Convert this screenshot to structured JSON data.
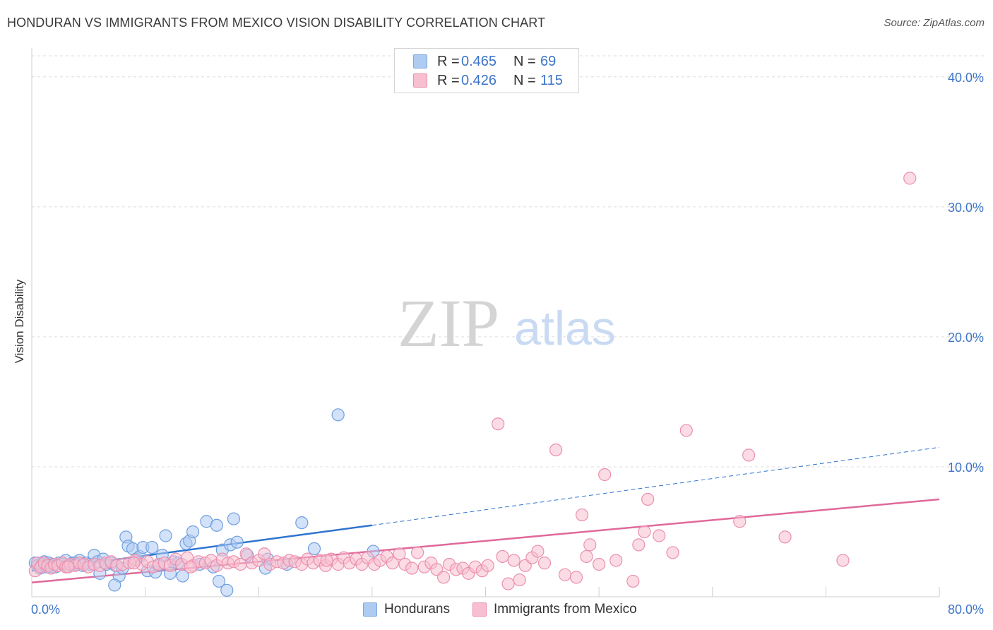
{
  "header": {
    "title": "HONDURAN VS IMMIGRANTS FROM MEXICO VISION DISABILITY CORRELATION CHART",
    "source": "Source: ZipAtlas.com"
  },
  "watermark": {
    "zip": "ZIP",
    "atlas": "atlas"
  },
  "legend": {
    "r_label": "R =",
    "n_label": "N =",
    "rows": [
      {
        "name": "Hondurans",
        "r": "0.465",
        "n": "69",
        "color": "#aecbf2",
        "edge": "#7fa8e0"
      },
      {
        "name": "Immigrants from Mexico",
        "r": "0.426",
        "n": "115",
        "color": "#f7bfd0",
        "edge": "#eb8fae"
      }
    ]
  },
  "chart_data": {
    "type": "scatter",
    "title": "HONDURAN VS IMMIGRANTS FROM MEXICO VISION DISABILITY CORRELATION CHART",
    "xlabel": "",
    "ylabel": "Vision Disability",
    "xlim": [
      0,
      80
    ],
    "ylim": [
      0,
      42
    ],
    "x_tick_labels": [
      "0.0%",
      "80.0%"
    ],
    "y_ticks": [
      10,
      20,
      30,
      40
    ],
    "y_tick_labels": [
      "10.0%",
      "20.0%",
      "30.0%",
      "40.0%"
    ],
    "grid": true,
    "series": [
      {
        "name": "Hondurans",
        "color": "#6f9fe0",
        "fill": "#aecbf2",
        "trend": {
          "x0": 0,
          "y0": 2.0,
          "x1": 30,
          "y1": 5.5,
          "dashed_to_x": 80,
          "dashed_to_y": 11.5,
          "color": "#2f74d0"
        },
        "points": [
          [
            0.3,
            2.6
          ],
          [
            0.5,
            2.4
          ],
          [
            0.7,
            2.2
          ],
          [
            0.9,
            2.5
          ],
          [
            1.1,
            2.7
          ],
          [
            1.3,
            2.3
          ],
          [
            1.5,
            2.6
          ],
          [
            1.7,
            2.4
          ],
          [
            1.9,
            2.5
          ],
          [
            2.1,
            2.3
          ],
          [
            2.4,
            2.6
          ],
          [
            2.7,
            2.5
          ],
          [
            3.0,
            2.8
          ],
          [
            3.3,
            2.4
          ],
          [
            3.6,
            2.6
          ],
          [
            3.9,
            2.5
          ],
          [
            4.2,
            2.8
          ],
          [
            4.5,
            2.4
          ],
          [
            4.8,
            2.6
          ],
          [
            5.1,
            2.5
          ],
          [
            5.5,
            3.2
          ],
          [
            5.8,
            2.7
          ],
          [
            6.0,
            1.8
          ],
          [
            6.3,
            2.9
          ],
          [
            6.6,
            2.5
          ],
          [
            7.0,
            2.6
          ],
          [
            7.4,
            2.4
          ],
          [
            7.7,
            1.6
          ],
          [
            8.0,
            2.2
          ],
          [
            8.3,
            4.6
          ],
          [
            8.5,
            3.9
          ],
          [
            8.9,
            3.7
          ],
          [
            9.2,
            2.9
          ],
          [
            9.5,
            3.1
          ],
          [
            9.8,
            3.8
          ],
          [
            10.2,
            2.0
          ],
          [
            10.6,
            3.8
          ],
          [
            10.9,
            1.9
          ],
          [
            11.2,
            2.4
          ],
          [
            11.5,
            3.2
          ],
          [
            11.8,
            4.7
          ],
          [
            12.2,
            1.8
          ],
          [
            12.5,
            2.7
          ],
          [
            12.9,
            2.6
          ],
          [
            13.3,
            1.6
          ],
          [
            13.6,
            4.1
          ],
          [
            13.9,
            4.3
          ],
          [
            14.2,
            5.0
          ],
          [
            14.8,
            2.5
          ],
          [
            15.4,
            5.8
          ],
          [
            16.0,
            2.3
          ],
          [
            16.3,
            5.5
          ],
          [
            16.5,
            1.2
          ],
          [
            16.8,
            3.6
          ],
          [
            17.2,
            0.5
          ],
          [
            17.5,
            4.0
          ],
          [
            17.8,
            6.0
          ],
          [
            18.1,
            4.2
          ],
          [
            19.0,
            3.2
          ],
          [
            20.8,
            2.9
          ],
          [
            20.6,
            2.2
          ],
          [
            22.5,
            2.5
          ],
          [
            23.8,
            5.7
          ],
          [
            24.9,
            3.7
          ],
          [
            27.0,
            14.0
          ],
          [
            30.1,
            3.5
          ],
          [
            1.8,
            2.3
          ],
          [
            3.8,
            2.6
          ],
          [
            7.3,
            0.9
          ]
        ]
      },
      {
        "name": "Immigrants from Mexico",
        "color": "#eb8fae",
        "fill": "#f7bfd0",
        "trend": {
          "x0": 0,
          "y0": 1.1,
          "x1": 80,
          "y1": 7.5,
          "color": "#e0699a"
        },
        "points": [
          [
            0.3,
            2.0
          ],
          [
            0.5,
            2.6
          ],
          [
            0.8,
            2.3
          ],
          [
            1.1,
            2.6
          ],
          [
            1.4,
            2.4
          ],
          [
            1.7,
            2.2
          ],
          [
            2.0,
            2.5
          ],
          [
            2.3,
            2.4
          ],
          [
            2.7,
            2.6
          ],
          [
            3.0,
            2.3
          ],
          [
            3.4,
            2.5
          ],
          [
            3.8,
            2.4
          ],
          [
            4.2,
            2.6
          ],
          [
            4.6,
            2.5
          ],
          [
            5.0,
            2.3
          ],
          [
            5.5,
            2.5
          ],
          [
            6.0,
            2.4
          ],
          [
            6.5,
            2.6
          ],
          [
            7.0,
            2.7
          ],
          [
            7.5,
            2.4
          ],
          [
            8.0,
            2.5
          ],
          [
            8.6,
            2.6
          ],
          [
            9.1,
            2.8
          ],
          [
            9.7,
            2.5
          ],
          [
            10.2,
            2.7
          ],
          [
            10.7,
            2.3
          ],
          [
            11.2,
            2.5
          ],
          [
            11.7,
            2.6
          ],
          [
            12.2,
            2.4
          ],
          [
            12.7,
            2.9
          ],
          [
            13.2,
            2.5
          ],
          [
            13.7,
            3.0
          ],
          [
            14.2,
            2.4
          ],
          [
            14.7,
            2.7
          ],
          [
            15.3,
            2.6
          ],
          [
            15.8,
            2.8
          ],
          [
            16.3,
            2.4
          ],
          [
            16.8,
            2.9
          ],
          [
            17.3,
            2.6
          ],
          [
            17.8,
            2.7
          ],
          [
            18.4,
            2.5
          ],
          [
            18.9,
            3.3
          ],
          [
            19.4,
            2.6
          ],
          [
            20.0,
            2.8
          ],
          [
            20.5,
            3.3
          ],
          [
            21.0,
            2.5
          ],
          [
            21.6,
            2.7
          ],
          [
            22.2,
            2.6
          ],
          [
            22.7,
            2.8
          ],
          [
            23.2,
            2.7
          ],
          [
            23.8,
            2.5
          ],
          [
            24.3,
            2.9
          ],
          [
            24.8,
            2.6
          ],
          [
            25.4,
            2.8
          ],
          [
            25.9,
            2.4
          ],
          [
            26.4,
            2.9
          ],
          [
            27.0,
            2.5
          ],
          [
            27.5,
            3.0
          ],
          [
            28.0,
            2.6
          ],
          [
            28.6,
            2.9
          ],
          [
            29.1,
            2.5
          ],
          [
            29.6,
            3.0
          ],
          [
            30.2,
            2.5
          ],
          [
            30.7,
            2.8
          ],
          [
            31.3,
            3.1
          ],
          [
            31.8,
            2.6
          ],
          [
            32.4,
            3.3
          ],
          [
            32.9,
            2.5
          ],
          [
            33.5,
            2.2
          ],
          [
            34.0,
            3.4
          ],
          [
            34.6,
            2.3
          ],
          [
            35.2,
            2.6
          ],
          [
            35.7,
            2.1
          ],
          [
            36.3,
            1.5
          ],
          [
            36.8,
            2.5
          ],
          [
            37.4,
            2.1
          ],
          [
            38.0,
            2.2
          ],
          [
            38.5,
            1.8
          ],
          [
            39.1,
            2.3
          ],
          [
            39.7,
            2.0
          ],
          [
            40.2,
            2.4
          ],
          [
            41.1,
            13.3
          ],
          [
            41.5,
            3.1
          ],
          [
            42.0,
            1.0
          ],
          [
            42.5,
            2.8
          ],
          [
            43.0,
            1.3
          ],
          [
            43.5,
            2.4
          ],
          [
            44.1,
            3.0
          ],
          [
            44.6,
            3.5
          ],
          [
            45.2,
            2.6
          ],
          [
            46.2,
            11.3
          ],
          [
            47.0,
            1.7
          ],
          [
            48.0,
            1.5
          ],
          [
            48.5,
            6.3
          ],
          [
            48.9,
            3.1
          ],
          [
            49.2,
            4.0
          ],
          [
            50.0,
            2.5
          ],
          [
            50.5,
            9.4
          ],
          [
            51.5,
            2.8
          ],
          [
            53.0,
            1.2
          ],
          [
            53.5,
            4.0
          ],
          [
            54.0,
            5.0
          ],
          [
            54.3,
            7.5
          ],
          [
            55.3,
            4.7
          ],
          [
            56.5,
            3.4
          ],
          [
            57.7,
            12.8
          ],
          [
            62.4,
            5.8
          ],
          [
            63.2,
            10.9
          ],
          [
            66.4,
            4.6
          ],
          [
            71.5,
            2.8
          ],
          [
            77.4,
            32.2
          ],
          [
            3.2,
            2.3
          ],
          [
            9.0,
            2.6
          ],
          [
            14.0,
            2.3
          ],
          [
            26.0,
            2.8
          ]
        ]
      }
    ]
  }
}
